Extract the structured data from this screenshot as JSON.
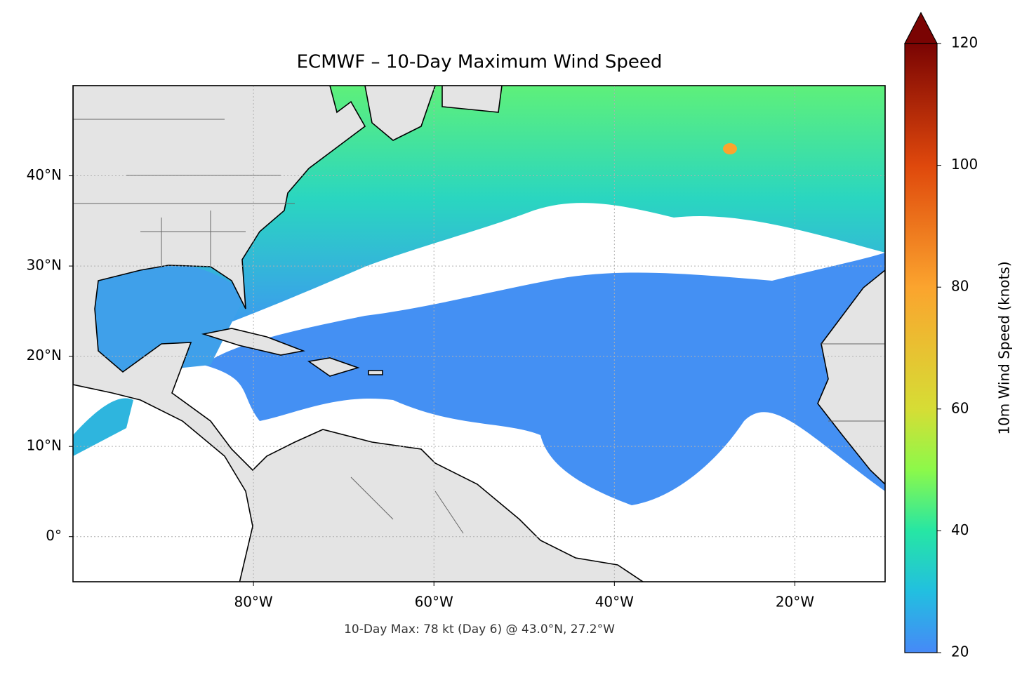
{
  "chart_data": {
    "type": "map",
    "title": "ECMWF – 10-Day Maximum Wind Speed",
    "annotation": "10-Day Max: 78 kt (Day 6) @ 43.0°N, 27.2°W",
    "xlim": [
      -100,
      -10
    ],
    "ylim": [
      -5,
      50
    ],
    "xticks": [
      {
        "value": -80,
        "label": "80°W"
      },
      {
        "value": -60,
        "label": "60°W"
      },
      {
        "value": -40,
        "label": "40°W"
      },
      {
        "value": -20,
        "label": "20°W"
      }
    ],
    "yticks": [
      {
        "value": 0,
        "label": "0°"
      },
      {
        "value": 10,
        "label": "10°N"
      },
      {
        "value": 20,
        "label": "20°N"
      },
      {
        "value": 30,
        "label": "30°N"
      },
      {
        "value": 40,
        "label": "40°N"
      }
    ],
    "grid": true,
    "colorbar": {
      "label": "10m Wind Speed (knots)",
      "lim": [
        20,
        120
      ],
      "ticks": [
        20,
        40,
        60,
        80,
        100,
        120
      ]
    }
  }
}
